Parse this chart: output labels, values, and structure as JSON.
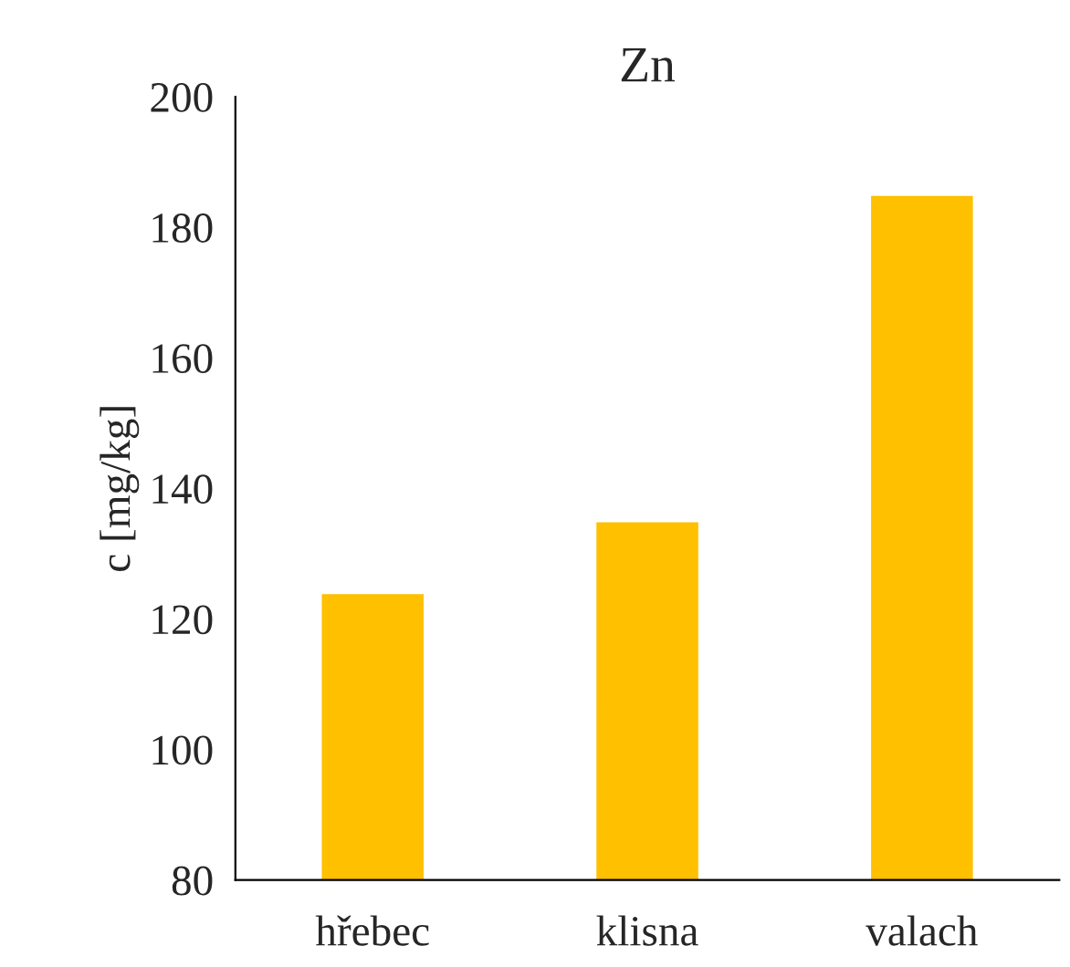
{
  "chart_data": {
    "type": "bar",
    "title": "Zn",
    "ylabel": "c [mg/kg]",
    "categories": [
      "hřebec",
      "klisna",
      "valach"
    ],
    "values": [
      124,
      135,
      185
    ],
    "color": "#ffc000",
    "ylim": [
      80,
      200
    ],
    "yticks": [
      80,
      100,
      120,
      140,
      160,
      180,
      200
    ],
    "grid": false,
    "legend": false
  }
}
